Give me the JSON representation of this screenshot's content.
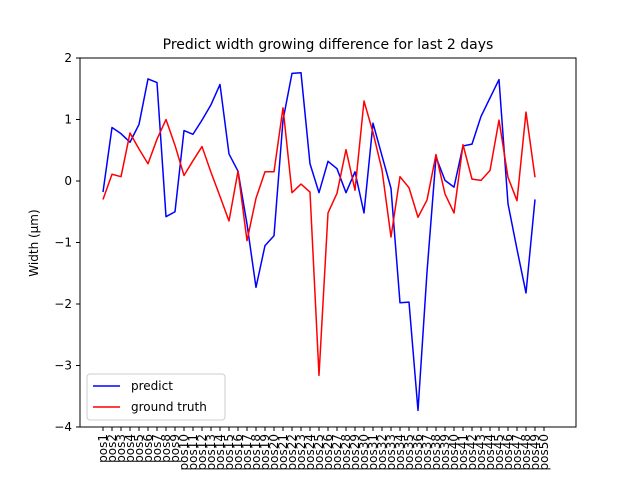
{
  "chart_data": {
    "type": "line",
    "title": "Predict width growing difference for last 2 days",
    "ylabel": "Width (μm)",
    "xlabel": "",
    "ylim": [
      -4,
      2
    ],
    "yticks": [
      -4,
      -3,
      -2,
      -1,
      0,
      1,
      2
    ],
    "ytick_labels": [
      "−4",
      "−3",
      "−2",
      "−1",
      "0",
      "1",
      "2"
    ],
    "grid": false,
    "legend_position": "lower-left",
    "categories": [
      "pos1",
      "pos2",
      "pos3",
      "pos4",
      "pos5",
      "pos6",
      "pos7",
      "pos8",
      "pos9",
      "pos10",
      "pos11",
      "pos12",
      "pos13",
      "pos14",
      "pos15",
      "pos16",
      "pos17",
      "pos18",
      "pos19",
      "pos20",
      "pos21",
      "pos22",
      "pos23",
      "pos24",
      "pos25",
      "pos26",
      "pos27",
      "pos28",
      "pos29",
      "pos30",
      "pos31",
      "pos32",
      "pos33",
      "pos34",
      "pos35",
      "pos36",
      "pos37",
      "pos38",
      "pos39",
      "pos40",
      "pos41",
      "pos42",
      "pos43",
      "pos44",
      "pos45",
      "pos46",
      "pos47",
      "pos48",
      "pos49",
      "pos50"
    ],
    "series": [
      {
        "name": "predict",
        "color": "#0000ff",
        "values": [
          -0.18,
          0.87,
          0.77,
          0.63,
          0.92,
          1.66,
          1.6,
          -0.58,
          -0.5,
          0.82,
          0.76,
          0.99,
          1.24,
          1.57,
          0.44,
          0.16,
          -0.7,
          -1.73,
          -1.05,
          -0.89,
          0.99,
          1.75,
          1.76,
          0.28,
          -0.19,
          0.32,
          0.2,
          -0.19,
          0.15,
          -0.52,
          0.94,
          0.41,
          -0.12,
          -1.98,
          -1.97,
          -3.73,
          -1.48,
          0.39,
          0.01,
          -0.1,
          0.57,
          0.6,
          1.05,
          1.35,
          1.65,
          -0.37,
          -1.11,
          -1.82,
          -0.3,
          null
        ]
      },
      {
        "name": "ground truth",
        "color": "#ff0000",
        "values": [
          -0.3,
          0.11,
          0.07,
          0.78,
          0.52,
          0.28,
          0.68,
          1.0,
          0.58,
          0.09,
          0.33,
          0.56,
          0.14,
          -0.25,
          -0.65,
          0.16,
          -0.97,
          -0.28,
          0.15,
          0.15,
          1.19,
          -0.19,
          -0.05,
          -0.18,
          -3.16,
          -0.52,
          -0.2,
          0.51,
          -0.15,
          1.3,
          0.79,
          0.18,
          -0.91,
          0.07,
          -0.11,
          -0.59,
          -0.31,
          0.43,
          -0.21,
          -0.52,
          0.59,
          0.03,
          0.01,
          0.17,
          0.99,
          0.06,
          -0.32,
          1.12,
          0.06,
          null
        ]
      }
    ]
  }
}
